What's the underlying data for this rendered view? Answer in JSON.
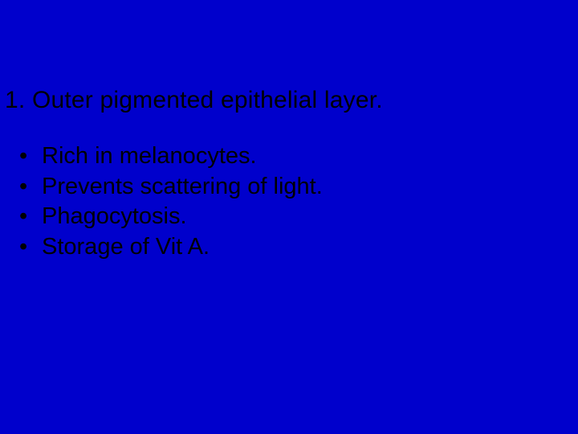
{
  "slide": {
    "background_color": "#0000cc",
    "text_color": "#000000",
    "font_family": "Comic Sans MS",
    "heading": {
      "text": "1.  Outer pigmented epithelial layer.",
      "fontsize": 30
    },
    "bullets": {
      "fontsize": 29,
      "marker": "•",
      "items": [
        " Rich in melanocytes.",
        "Prevents scattering of light.",
        "Phagocytosis.",
        "Storage of Vit A."
      ]
    }
  }
}
